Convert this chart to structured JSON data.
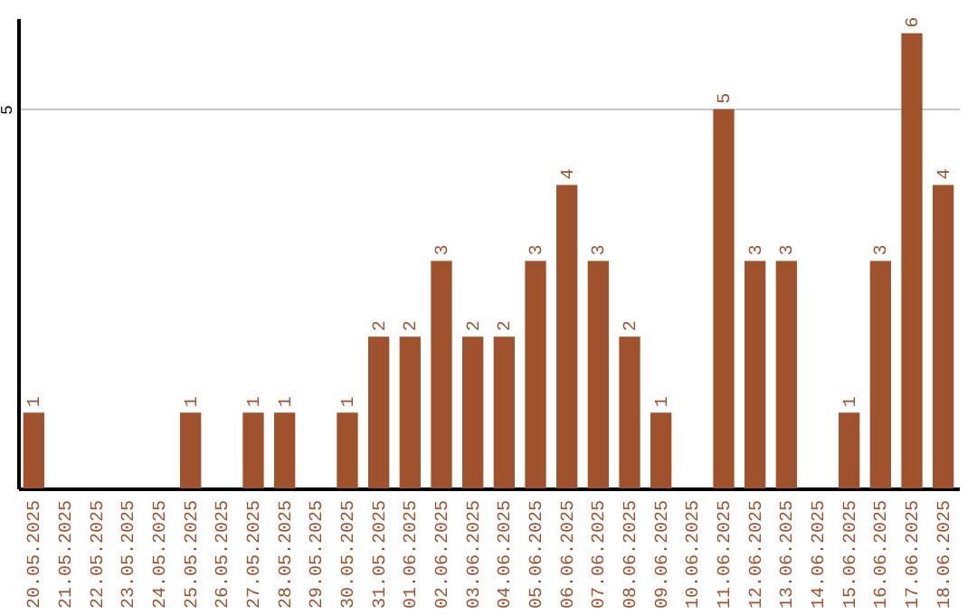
{
  "chart_data": {
    "type": "bar",
    "categories": [
      "20.05.2025",
      "21.05.2025",
      "22.05.2025",
      "23.05.2025",
      "24.05.2025",
      "25.05.2025",
      "26.05.2025",
      "27.05.2025",
      "28.05.2025",
      "29.05.2025",
      "30.05.2025",
      "31.05.2025",
      "01.06.2025",
      "02.06.2025",
      "03.06.2025",
      "04.06.2025",
      "05.06.2025",
      "06.06.2025",
      "07.06.2025",
      "08.06.2025",
      "09.06.2025",
      "10.06.2025",
      "11.06.2025",
      "12.06.2025",
      "13.06.2025",
      "14.06.2025",
      "15.06.2025",
      "16.06.2025",
      "17.06.2025",
      "18.06.2025"
    ],
    "values": [
      1,
      null,
      null,
      null,
      null,
      1,
      null,
      1,
      1,
      null,
      1,
      2,
      2,
      3,
      2,
      2,
      3,
      4,
      3,
      2,
      1,
      null,
      5,
      3,
      3,
      null,
      1,
      3,
      6,
      4
    ],
    "color": "#a0522d",
    "ylim": [
      0,
      6.2
    ],
    "yticks": [
      5
    ],
    "grid": "y",
    "data_labels": true
  }
}
